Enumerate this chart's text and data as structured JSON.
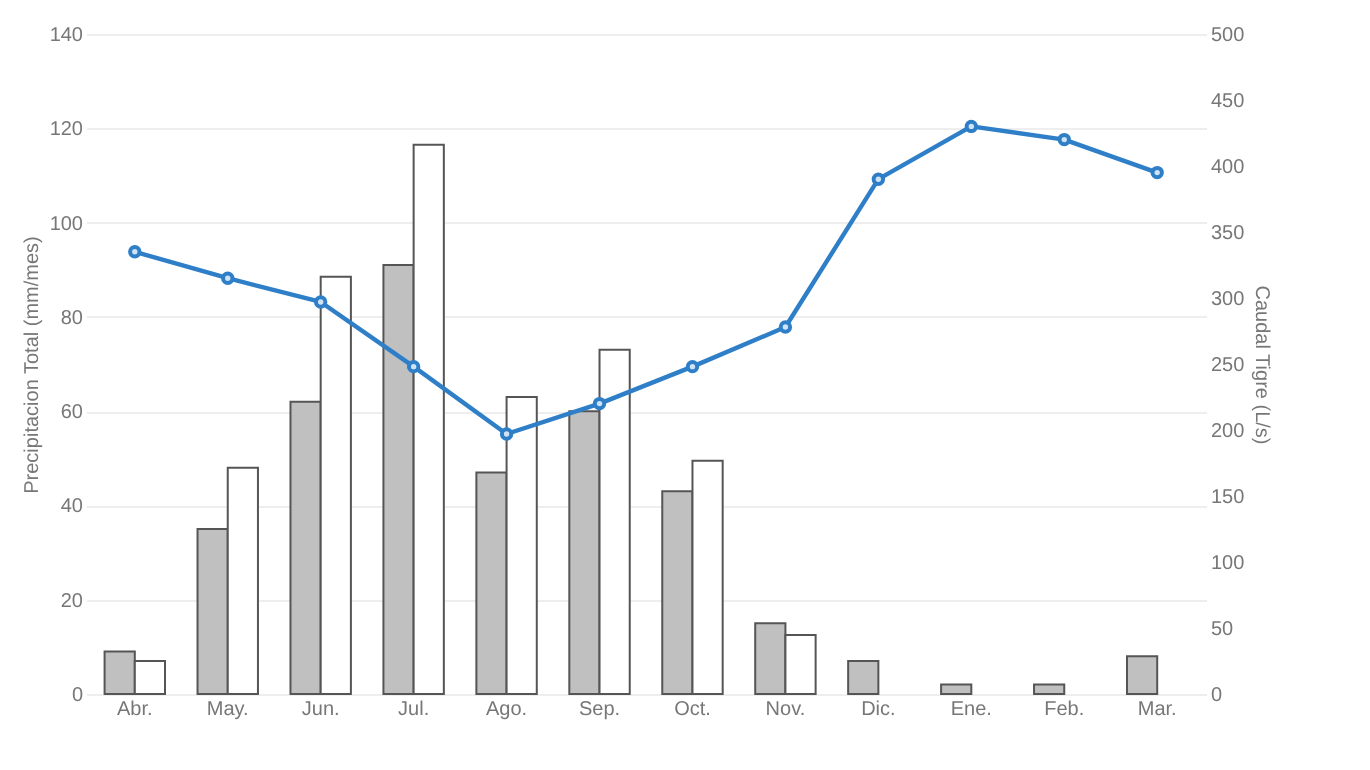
{
  "chart_data": {
    "type": "bar",
    "ylabel": "Precipitacion Total (mm/mes)",
    "y2label": "Caudal Tigre (L/s)",
    "categories": [
      "Abr.",
      "May.",
      "Jun.",
      "Jul.",
      "Ago.",
      "Sep.",
      "Oct.",
      "Nov.",
      "Dic.",
      "Ene.",
      "Feb.",
      "Mar."
    ],
    "series": [
      {
        "color": "#c0c0c0",
        "values": [
          9,
          35,
          62,
          91,
          47,
          60,
          43,
          15,
          7,
          2,
          2,
          8
        ]
      },
      {
        "color": "#ffffff",
        "values": [
          7,
          48,
          88.5,
          116.5,
          63,
          73,
          49.5,
          12.5,
          null,
          null,
          null,
          null
        ]
      },
      {
        "type": "line",
        "axis": "y2",
        "color": "#2e7fc8",
        "marker": "circle",
        "values": [
          335,
          315,
          297,
          248,
          197,
          220,
          248,
          278,
          390,
          430,
          420,
          395
        ]
      }
    ],
    "ylim": [
      0,
      140
    ],
    "yticks": [
      0,
      20,
      40,
      60,
      80,
      100,
      120,
      140
    ],
    "y2lim": [
      0,
      500
    ],
    "y2ticks": [
      0,
      50,
      100,
      150,
      200,
      250,
      300,
      350,
      400,
      450,
      500
    ],
    "grid": "y"
  }
}
